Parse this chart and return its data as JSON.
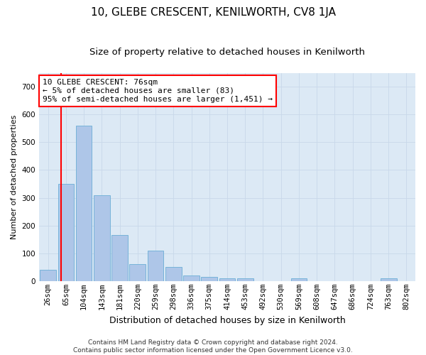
{
  "title": "10, GLEBE CRESCENT, KENILWORTH, CV8 1JA",
  "subtitle": "Size of property relative to detached houses in Kenilworth",
  "xlabel": "Distribution of detached houses by size in Kenilworth",
  "ylabel": "Number of detached properties",
  "categories": [
    "26sqm",
    "65sqm",
    "104sqm",
    "143sqm",
    "181sqm",
    "220sqm",
    "259sqm",
    "298sqm",
    "336sqm",
    "375sqm",
    "414sqm",
    "453sqm",
    "492sqm",
    "530sqm",
    "569sqm",
    "608sqm",
    "647sqm",
    "686sqm",
    "724sqm",
    "763sqm",
    "802sqm"
  ],
  "values": [
    40,
    350,
    560,
    310,
    165,
    60,
    110,
    50,
    20,
    15,
    10,
    10,
    0,
    0,
    10,
    0,
    0,
    0,
    0,
    10,
    0
  ],
  "bar_color": "#aec6e8",
  "bar_edge_color": "#6baed6",
  "background_color": "#dce9f5",
  "fig_background": "#ffffff",
  "annotation_line1": "10 GLEBE CRESCENT: 76sqm",
  "annotation_line2": "← 5% of detached houses are smaller (83)",
  "annotation_line3": "95% of semi-detached houses are larger (1,451) →",
  "annotation_box_color": "#ffffff",
  "annotation_box_edgecolor": "red",
  "vline_color": "red",
  "vline_x": 0.72,
  "ylim": [
    0,
    750
  ],
  "yticks": [
    0,
    100,
    200,
    300,
    400,
    500,
    600,
    700
  ],
  "grid_color": "#c8d8ea",
  "title_fontsize": 11,
  "subtitle_fontsize": 9.5,
  "xlabel_fontsize": 9,
  "ylabel_fontsize": 8,
  "tick_fontsize": 7.5,
  "footer_fontsize": 6.5,
  "annotation_fontsize": 8
}
